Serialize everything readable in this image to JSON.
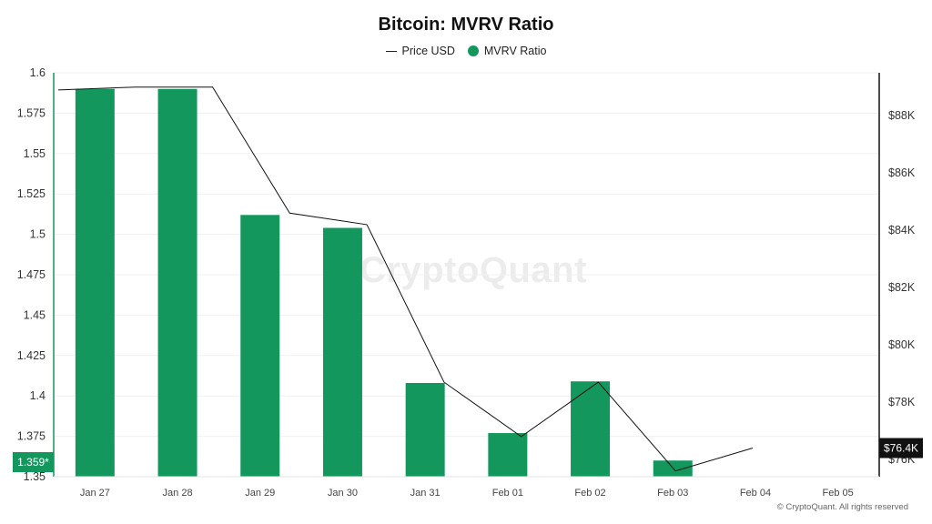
{
  "title": "Bitcoin: MVRV Ratio",
  "legend": {
    "price": "Price USD",
    "mvrv": "MVRV Ratio"
  },
  "watermark": "CryptoQuant",
  "credit": "© CryptoQuant. All rights reserved",
  "colors": {
    "bar": "#14975d",
    "price_line": "#111111",
    "left_axis": "#14975d",
    "right_axis": "#111111",
    "grid": "#f0f0f0"
  },
  "chart_data": {
    "type": "bar",
    "title": "Bitcoin: MVRV Ratio",
    "categories": [
      "Jan 27",
      "Jan 28",
      "Jan 29",
      "Jan 30",
      "Jan 31",
      "Feb 01",
      "Feb 02",
      "Feb 03",
      "Feb 04",
      "Feb 05"
    ],
    "series": [
      {
        "name": "MVRV Ratio",
        "axis": "left",
        "chart_type": "bar",
        "values": [
          1.59,
          1.59,
          1.512,
          1.504,
          1.408,
          1.377,
          1.409,
          1.36,
          null,
          null
        ]
      },
      {
        "name": "Price USD",
        "axis": "right",
        "chart_type": "line",
        "values": [
          88900,
          89000,
          89000,
          84600,
          84200,
          78700,
          76800,
          78700,
          75600,
          76400
        ]
      }
    ],
    "y_left": {
      "ticks": [
        "1.35",
        "1.375",
        "1.4",
        "1.425",
        "1.45",
        "1.475",
        "1.5",
        "1.525",
        "1.55",
        "1.575",
        "1.6"
      ],
      "ylim": [
        1.35,
        1.6
      ]
    },
    "y_right": {
      "ticks": [
        "$76K",
        "$78K",
        "$80K",
        "$82K",
        "$84K",
        "$86K",
        "$88K"
      ],
      "ylim": [
        75400,
        89500
      ]
    },
    "current_labels": {
      "left": "1.359*",
      "right": "$76.4K"
    },
    "grid": true,
    "legend_position": "top-center"
  }
}
